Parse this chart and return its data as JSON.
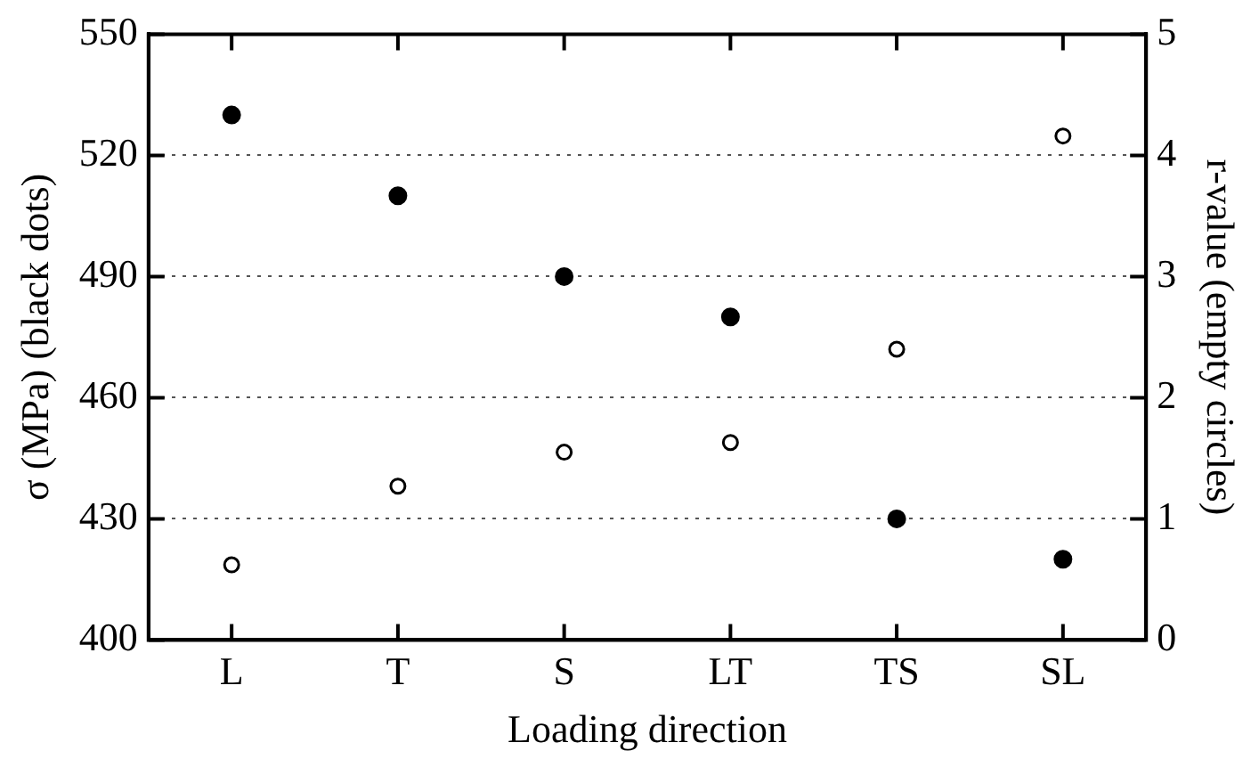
{
  "chart_data": {
    "type": "scatter",
    "xlabel": "Loading direction",
    "ylabel": "σ (MPa) (black dots)",
    "y2label": "r-value (empty circles)",
    "categories": [
      "L",
      "T",
      "S",
      "LT",
      "TS",
      "SL"
    ],
    "series": [
      {
        "color": "#000000",
        "values": [
          530,
          510,
          490,
          480,
          430,
          420
        ]
      },
      {
        "color": "#000000",
        "axis": "y2",
        "values": [
          0.62,
          1.27,
          1.55,
          1.63,
          2.4,
          4.16
        ]
      }
    ],
    "ylim": [
      400,
      550
    ],
    "yticks": [
      400,
      430,
      460,
      490,
      520,
      550
    ],
    "y2lim": [
      0,
      5
    ],
    "y2ticks": [
      0,
      1,
      2,
      3,
      4,
      5
    ],
    "grid": "y",
    "legend": false,
    "marker": "circle"
  }
}
